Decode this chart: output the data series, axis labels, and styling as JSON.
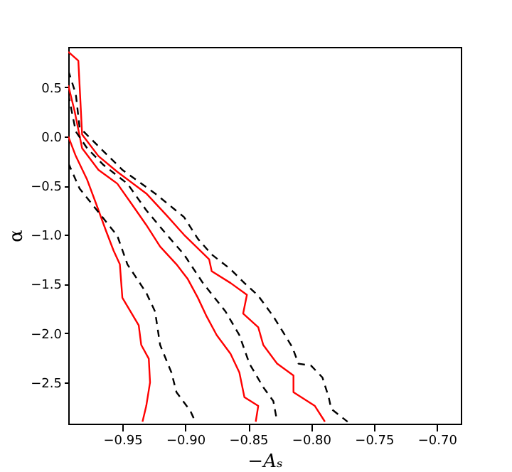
{
  "chart_data": {
    "type": "line",
    "xlabel": "−Aₛ",
    "ylabel": "α",
    "xlim": [
      -0.993,
      -0.681
    ],
    "ylim": [
      -2.92,
      0.91
    ],
    "xticks": [
      {
        "value": -0.95,
        "label": "−0.95"
      },
      {
        "value": -0.9,
        "label": "−0.90"
      },
      {
        "value": -0.85,
        "label": "−0.85"
      },
      {
        "value": -0.8,
        "label": "−0.80"
      },
      {
        "value": -0.75,
        "label": "−0.75"
      },
      {
        "value": -0.7,
        "label": "−0.70"
      }
    ],
    "yticks": [
      {
        "value": 0.5,
        "label": "0.5"
      },
      {
        "value": 0,
        "label": "0.0"
      },
      {
        "value": -0.5,
        "label": "−0.5"
      },
      {
        "value": -1,
        "label": "−1.0"
      },
      {
        "value": -1.5,
        "label": "−1.5"
      },
      {
        "value": -2,
        "label": "−2.0"
      },
      {
        "value": -2.5,
        "label": "−2.5"
      }
    ],
    "grid": false,
    "marker": "none",
    "series": [
      {
        "color": "#ff0000",
        "line_style": "solid",
        "x": [
          -0.993,
          -0.987,
          -0.978,
          -0.971,
          -0.963,
          -0.957,
          -0.952,
          -0.95,
          -0.937,
          -0.935,
          -0.929,
          -0.928,
          -0.931,
          -0.934
        ],
        "values": [
          0.0,
          -0.2,
          -0.44,
          -0.68,
          -0.96,
          -1.16,
          -1.3,
          -1.64,
          -1.92,
          -2.12,
          -2.26,
          -2.5,
          -2.74,
          -2.9
        ]
      },
      {
        "color": "#ff0000",
        "line_style": "solid",
        "x": [
          -0.993,
          -0.988,
          -0.982,
          -0.969,
          -0.954,
          -0.943,
          -0.931,
          -0.92,
          -0.907,
          -0.898,
          -0.89,
          -0.883,
          -0.875,
          -0.864,
          -0.857,
          -0.853,
          -0.842,
          -0.844
        ],
        "values": [
          0.52,
          0.26,
          -0.12,
          -0.34,
          -0.48,
          -0.68,
          -0.9,
          -1.12,
          -1.3,
          -1.45,
          -1.64,
          -1.83,
          -2.02,
          -2.21,
          -2.4,
          -2.65,
          -2.74,
          -2.9
        ]
      },
      {
        "color": "#ff0000",
        "line_style": "solid",
        "x": [
          -0.993,
          -0.985,
          -0.982,
          -0.969,
          -0.954,
          -0.931,
          -0.915,
          -0.901,
          -0.881,
          -0.879,
          -0.864,
          -0.851,
          -0.854,
          -0.842,
          -0.838,
          -0.827,
          -0.814,
          -0.814,
          -0.797,
          -0.789
        ],
        "values": [
          0.86,
          0.77,
          0.02,
          -0.2,
          -0.36,
          -0.58,
          -0.8,
          -1.0,
          -1.25,
          -1.37,
          -1.49,
          -1.61,
          -1.8,
          -1.94,
          -2.12,
          -2.31,
          -2.43,
          -2.6,
          -2.74,
          -2.9
        ]
      },
      {
        "color": "#000000",
        "line_style": "dashed",
        "x": [
          -0.993,
          -0.984,
          -0.969,
          -0.954,
          -0.946,
          -0.931,
          -0.924,
          -0.92,
          -0.911,
          -0.907,
          -0.896,
          -0.892
        ],
        "values": [
          -0.27,
          -0.53,
          -0.77,
          -1.01,
          -1.3,
          -1.59,
          -1.78,
          -2.12,
          -2.4,
          -2.6,
          -2.79,
          -2.9
        ]
      },
      {
        "color": "#000000",
        "line_style": "dashed",
        "x": [
          -0.993,
          -0.987,
          -0.978,
          -0.965,
          -0.946,
          -0.931,
          -0.916,
          -0.901,
          -0.886,
          -0.868,
          -0.857,
          -0.849,
          -0.838,
          -0.83,
          -0.827
        ],
        "values": [
          0.43,
          0.05,
          -0.12,
          -0.29,
          -0.48,
          -0.75,
          -0.98,
          -1.2,
          -1.49,
          -1.78,
          -2.02,
          -2.31,
          -2.55,
          -2.69,
          -2.9
        ]
      },
      {
        "color": "#000000",
        "line_style": "dashed",
        "x": [
          -0.993,
          -0.987,
          -0.984,
          -0.969,
          -0.95,
          -0.924,
          -0.901,
          -0.89,
          -0.879,
          -0.864,
          -0.853,
          -0.842,
          -0.83,
          -0.815,
          -0.81,
          -0.8,
          -0.791,
          -0.786,
          -0.784,
          -0.772,
          -0.771
        ],
        "values": [
          0.67,
          0.43,
          0.09,
          -0.1,
          -0.34,
          -0.58,
          -0.82,
          -1.04,
          -1.2,
          -1.35,
          -1.49,
          -1.62,
          -1.83,
          -2.14,
          -2.31,
          -2.33,
          -2.45,
          -2.65,
          -2.77,
          -2.89,
          -2.9
        ]
      }
    ]
  }
}
